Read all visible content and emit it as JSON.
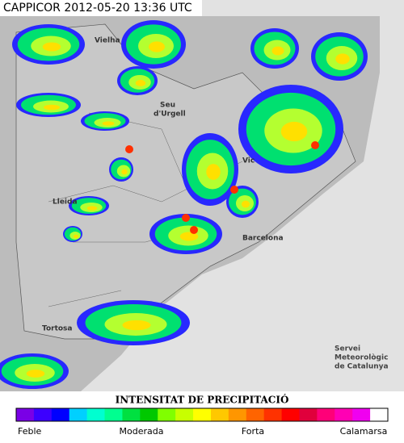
{
  "header": {
    "title": "CAPPICOR 2012-05-20 13:36 UTC"
  },
  "map": {
    "places": [
      "Vielha",
      "Seu",
      "d'Urgell",
      "Vic",
      "Lleida",
      "Barcelona",
      "Tortosa"
    ],
    "credit": [
      "Servei",
      "Meteorològic",
      "de Catalunya"
    ]
  },
  "legend": {
    "title": "INTENSITAT DE PRECIPITACIÓ",
    "colors": [
      "#7a00e6",
      "#3c00ff",
      "#0000ff",
      "#00d0ff",
      "#00ffd0",
      "#00ff90",
      "#00e040",
      "#00c800",
      "#80ff00",
      "#c8ff00",
      "#ffff00",
      "#ffc800",
      "#ff9600",
      "#ff6400",
      "#ff3200",
      "#ff0000",
      "#e0003c",
      "#ff0078",
      "#ff00b4",
      "#f000f0",
      "#ffffff"
    ],
    "labels": [
      "Feble",
      "Moderada",
      "Forta",
      "Calamarsa"
    ]
  }
}
